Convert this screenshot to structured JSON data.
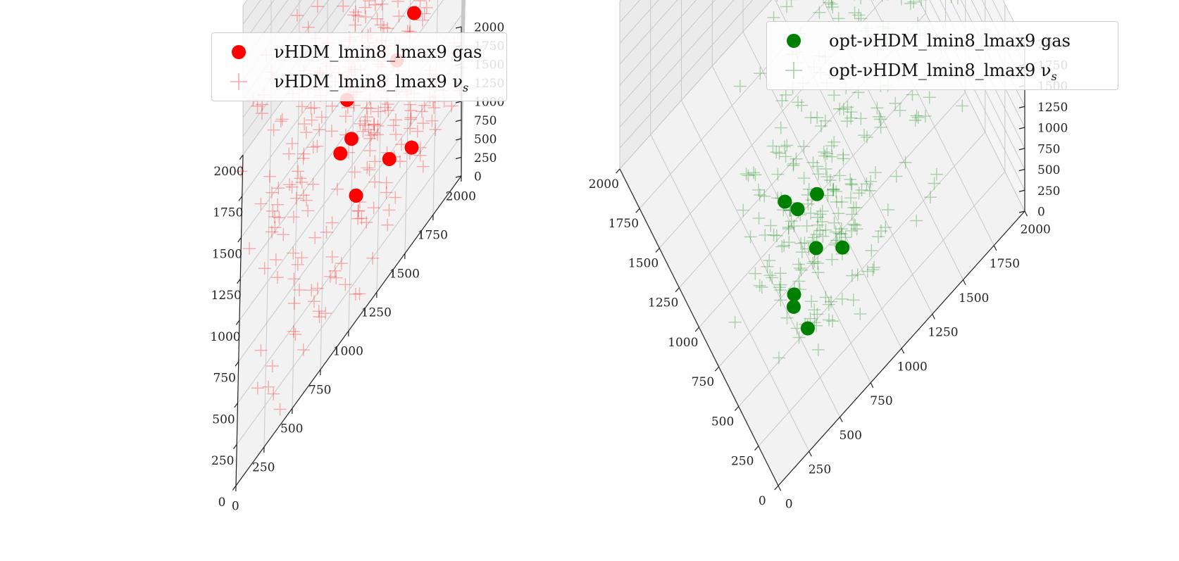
{
  "chart_data": [
    {
      "type": "scatter3d",
      "panel": "left",
      "legend": [
        {
          "label": "νHDM_lmin8_lmax9 gas",
          "marker": "circle",
          "color": "#ff0000"
        },
        {
          "label": "νHDM_lmin8_lmax9 ν",
          "label_sub": "s",
          "marker": "plus",
          "color": "#ff0000"
        }
      ],
      "legend_position": "top-right",
      "axes": {
        "x": {
          "range": [
            0,
            2000
          ],
          "ticks": [
            "0",
            "250",
            "500",
            "750",
            "1000",
            "1250",
            "1500",
            "1750",
            "2000"
          ]
        },
        "y": {
          "range": [
            0,
            2000
          ],
          "ticks": [
            "0",
            "250",
            "500",
            "750",
            "1000",
            "1250",
            "1500",
            "1750",
            "2000"
          ]
        },
        "z": {
          "range": [
            0,
            2000
          ],
          "ticks": [
            "0",
            "250",
            "500",
            "750",
            "1000",
            "1250",
            "1500",
            "1750",
            "2000"
          ]
        }
      },
      "view": {
        "elev": 30,
        "azim": -135
      },
      "gas_points": [
        [
          1250,
          2050,
          1750
        ],
        [
          1850,
          2000,
          1750
        ],
        [
          1800,
          1100,
          1500
        ],
        [
          1700,
          1000,
          1650
        ],
        [
          1500,
          1200,
          1400
        ],
        [
          1600,
          1300,
          1200
        ],
        [
          1000,
          1550,
          900
        ],
        [
          900,
          1400,
          800
        ],
        [
          800,
          1000,
          800
        ],
        [
          850,
          900,
          700
        ],
        [
          1150,
          950,
          650
        ],
        [
          350,
          1350,
          800
        ],
        [
          500,
          1050,
          600
        ],
        [
          500,
          1050,
          600
        ],
        [
          300,
          1550,
          650
        ]
      ],
      "nu_clusters": [
        {
          "center": [
            1250,
            2050,
            1750
          ],
          "spread": 120,
          "count": 35
        },
        {
          "center": [
            1100,
            1700,
            1600
          ],
          "spread": 200,
          "count": 30
        },
        {
          "center": [
            1700,
            1000,
            1600
          ],
          "spread": 150,
          "count": 40
        },
        {
          "center": [
            1500,
            1250,
            1300
          ],
          "spread": 150,
          "count": 40
        },
        {
          "center": [
            1200,
            1100,
            1100
          ],
          "spread": 180,
          "count": 45
        },
        {
          "center": [
            900,
            1300,
            800
          ],
          "spread": 180,
          "count": 45
        },
        {
          "center": [
            1400,
            800,
            500
          ],
          "spread": 250,
          "count": 30
        },
        {
          "center": [
            400,
            1300,
            650
          ],
          "spread": 220,
          "count": 45
        },
        {
          "center": [
            300,
            1700,
            900
          ],
          "spread": 150,
          "count": 25
        },
        {
          "center": [
            1000,
            500,
            800
          ],
          "spread": 150,
          "count": 30
        },
        {
          "center": [
            200,
            700,
            450
          ],
          "spread": 250,
          "count": 30
        },
        {
          "center": [
            1500,
            1900,
            1500
          ],
          "spread": 250,
          "count": 20
        },
        {
          "center": [
            1800,
            300,
            600
          ],
          "spread": 250,
          "count": 20
        }
      ]
    },
    {
      "type": "scatter3d",
      "panel": "right",
      "legend": [
        {
          "label": "opt-νHDM_lmin8_lmax9 gas",
          "marker": "circle",
          "color": "#008000"
        },
        {
          "label": "opt-νHDM_lmin8_lmax9 ν",
          "label_sub": "s",
          "marker": "plus",
          "color": "#008000"
        }
      ],
      "legend_position": "top-right",
      "axes": {
        "x": {
          "range": [
            0,
            2000
          ],
          "ticks": [
            "0",
            "250",
            "500",
            "750",
            "1000",
            "1250",
            "1500",
            "1750",
            "2000"
          ]
        },
        "y": {
          "range": [
            0,
            2000
          ],
          "ticks": [
            "0",
            "250",
            "500",
            "750",
            "1000",
            "1250",
            "1500",
            "1750",
            "2000"
          ]
        },
        "z": {
          "range": [
            0,
            2000
          ],
          "ticks": [
            "0",
            "250",
            "500",
            "750",
            "1000",
            "1250",
            "1500",
            "1750",
            "2000"
          ]
        }
      },
      "view": {
        "elev": 30,
        "azim": -60
      },
      "gas_points": [
        [
          1500,
          1600,
          700
        ],
        [
          1000,
          800,
          100
        ],
        [
          500,
          450,
          600
        ],
        [
          250,
          400,
          750
        ],
        [
          600,
          700,
          1200
        ],
        [
          350,
          350,
          900
        ],
        [
          200,
          650,
          1400
        ],
        [
          300,
          500,
          1450
        ],
        [
          850,
          600,
          800
        ],
        [
          2100,
          1950,
          700
        ]
      ],
      "nu_clusters": [
        {
          "center": [
            1500,
            1600,
            700
          ],
          "spread": 150,
          "count": 40
        },
        {
          "center": [
            1000,
            800,
            100
          ],
          "spread": 180,
          "count": 40
        },
        {
          "center": [
            500,
            500,
            800
          ],
          "spread": 200,
          "count": 55
        },
        {
          "center": [
            200,
            600,
            1300
          ],
          "spread": 180,
          "count": 40
        },
        {
          "center": [
            900,
            900,
            600
          ],
          "spread": 250,
          "count": 45
        },
        {
          "center": [
            1700,
            1500,
            1700
          ],
          "spread": 300,
          "count": 30
        },
        {
          "center": [
            600,
            1500,
            1800
          ],
          "spread": 250,
          "count": 30
        },
        {
          "center": [
            1400,
            1100,
            800
          ],
          "spread": 250,
          "count": 30
        },
        {
          "center": [
            1100,
            1900,
            1500
          ],
          "spread": 250,
          "count": 25
        },
        {
          "center": [
            400,
            1100,
            1500
          ],
          "spread": 250,
          "count": 25
        }
      ]
    }
  ]
}
